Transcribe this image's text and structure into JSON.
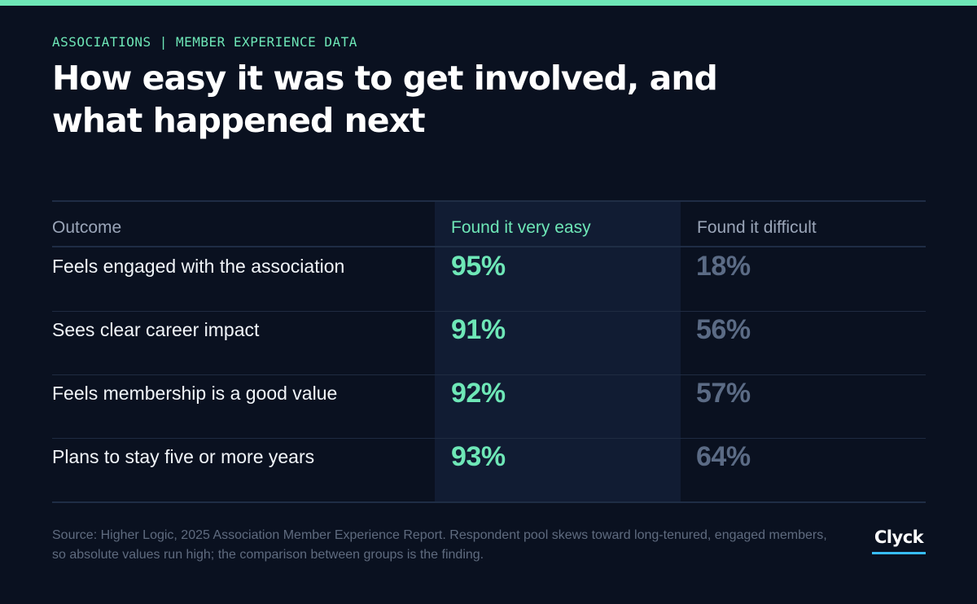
{
  "header": {
    "eyebrow": "ASSOCIATIONS | MEMBER EXPERIENCE DATA",
    "title": "How easy it was to get involved, and what happened next"
  },
  "chart_data": {
    "type": "table",
    "columns": [
      "Outcome",
      "Found it very easy",
      "Found it difficult"
    ],
    "rows": [
      {
        "label": "Feels engaged with the association",
        "very_easy": "95%",
        "difficult": "18%"
      },
      {
        "label": "Sees clear career impact",
        "very_easy": "91%",
        "difficult": "56%"
      },
      {
        "label": "Feels membership is a good value",
        "very_easy": "92%",
        "difficult": "57%"
      },
      {
        "label": "Plans to stay five or more years",
        "very_easy": "93%",
        "difficult": "64%"
      }
    ]
  },
  "colors": {
    "accent": "#6ee7b7",
    "muted_value": "#5b6b85",
    "highlight_column": "#111c33",
    "brand_underline": "#38bdf8"
  },
  "footer": {
    "source": "Source: Higher Logic, 2025 Association Member Experience Report. Respondent pool skews toward long-tenured, engaged members, so absolute values run high; the comparison between groups is the finding.",
    "brand": "Clyck"
  }
}
